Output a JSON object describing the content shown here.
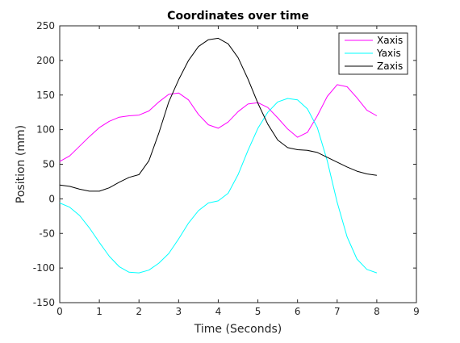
{
  "chart_data": {
    "type": "line",
    "title": "Coordinates over time",
    "xlabel": "Time (Seconds)",
    "ylabel": "Position (mm)",
    "xlim": [
      0,
      9
    ],
    "ylim": [
      -150,
      250
    ],
    "xticks": [
      0,
      1,
      2,
      3,
      4,
      5,
      6,
      7,
      8,
      9
    ],
    "yticks": [
      -150,
      -100,
      -50,
      0,
      50,
      100,
      150,
      200,
      250
    ],
    "grid": false,
    "legend_position": "top-right",
    "series": [
      {
        "name": "Xaxis",
        "color": "#ff00ff",
        "x": [
          0,
          0.25,
          0.5,
          0.75,
          1,
          1.25,
          1.5,
          1.75,
          2,
          2.25,
          2.5,
          2.75,
          3,
          3.25,
          3.5,
          3.75,
          4,
          4.25,
          4.5,
          4.75,
          5,
          5.25,
          5.5,
          5.75,
          6,
          6.25,
          6.5,
          6.75,
          7,
          7.25,
          7.5,
          7.75,
          8
        ],
        "y": [
          54,
          62,
          76,
          90,
          103,
          112,
          118,
          120,
          121,
          127,
          140,
          151,
          153,
          143,
          122,
          107,
          102,
          111,
          126,
          137,
          139,
          132,
          117,
          101,
          89,
          96,
          120,
          148,
          165,
          162,
          146,
          128,
          120
        ]
      },
      {
        "name": "Yaxis",
        "color": "#00ffff",
        "x": [
          0,
          0.25,
          0.5,
          0.75,
          1,
          1.25,
          1.5,
          1.75,
          2,
          2.25,
          2.5,
          2.75,
          3,
          3.25,
          3.5,
          3.75,
          4,
          4.25,
          4.5,
          4.75,
          5,
          5.25,
          5.5,
          5.75,
          6,
          6.25,
          6.5,
          6.75,
          7,
          7.25,
          7.5,
          7.75,
          8
        ],
        "y": [
          -6,
          -12,
          -24,
          -42,
          -63,
          -83,
          -98,
          -106,
          -107,
          -103,
          -93,
          -79,
          -58,
          -35,
          -17,
          -6,
          -3,
          8,
          35,
          70,
          102,
          125,
          140,
          145,
          143,
          130,
          103,
          55,
          -5,
          -55,
          -87,
          -102,
          -107
        ]
      },
      {
        "name": "Zaxis",
        "color": "#000000",
        "x": [
          0,
          0.25,
          0.5,
          0.75,
          1,
          1.25,
          1.5,
          1.75,
          2,
          2.25,
          2.5,
          2.75,
          3,
          3.25,
          3.5,
          3.75,
          4,
          4.25,
          4.5,
          4.75,
          5,
          5.25,
          5.5,
          5.75,
          6,
          6.25,
          6.5,
          6.75,
          7,
          7.25,
          7.5,
          7.75,
          8
        ],
        "y": [
          20,
          18,
          14,
          11,
          11,
          16,
          24,
          31,
          35,
          55,
          95,
          140,
          172,
          200,
          220,
          230,
          232,
          224,
          204,
          173,
          138,
          108,
          85,
          74,
          71,
          70,
          67,
          60,
          53,
          46,
          40,
          36,
          34
        ]
      }
    ]
  }
}
